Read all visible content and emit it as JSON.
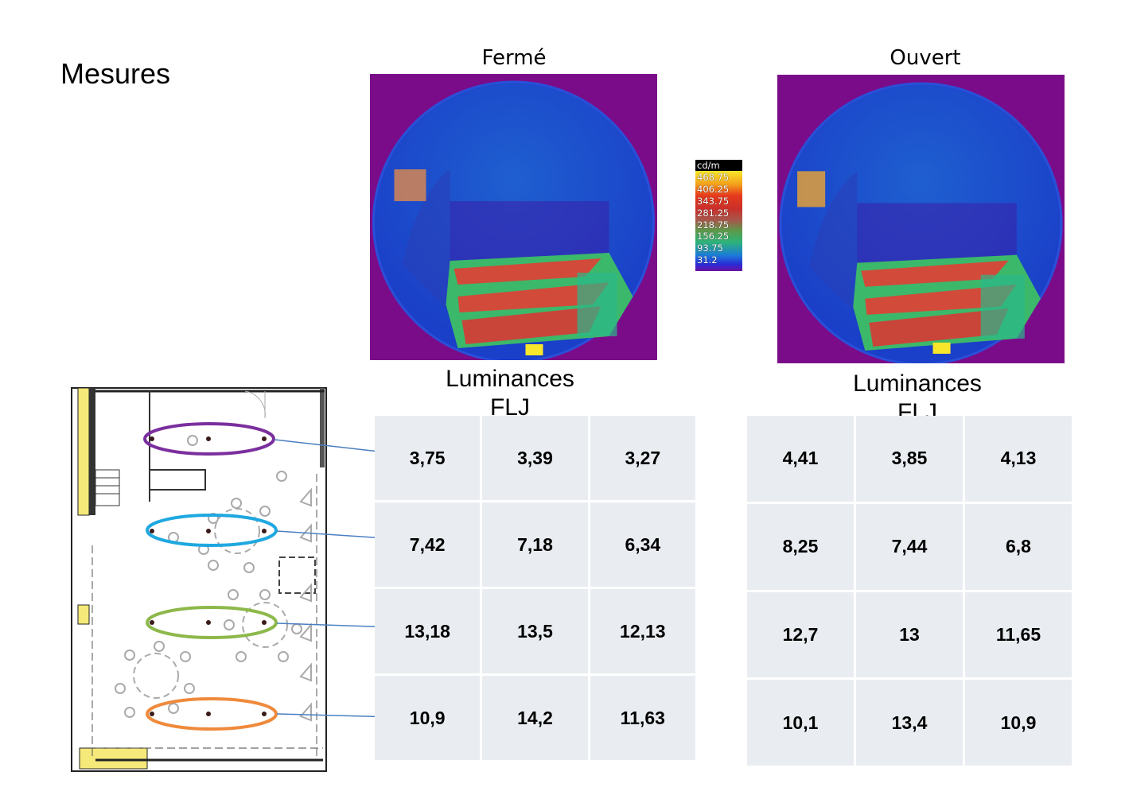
{
  "page": {
    "title": "Mesures"
  },
  "images": {
    "closed": {
      "caption": "Fermé"
    },
    "open": {
      "caption": "Ouvert"
    }
  },
  "legend": {
    "unit": "cd/m",
    "values": [
      "468.75",
      "406.25",
      "343.75",
      "281.25",
      "218.75",
      "156.25",
      "93.75",
      "31.2"
    ]
  },
  "tables": {
    "closed": {
      "title_line1": "Luminances",
      "title_line2": "FLJ",
      "rows": [
        [
          "3,75",
          "3,39",
          "3,27"
        ],
        [
          "7,42",
          "7,18",
          "6,34"
        ],
        [
          "13,18",
          "13,5",
          "12,13"
        ],
        [
          "10,9",
          "14,2",
          "11,63"
        ]
      ]
    },
    "open": {
      "title_line1": "Luminances",
      "title_line2": "FLJ",
      "rows": [
        [
          "4,41",
          "3,85",
          "4,13"
        ],
        [
          "8,25",
          "7,44",
          "6,8"
        ],
        [
          "12,7",
          "13",
          "11,65"
        ],
        [
          "10,1",
          "13,4",
          "10,9"
        ]
      ]
    }
  },
  "floorplan": {
    "row_colors": [
      "#7b2f9e",
      "#1fa8e0",
      "#8db84a",
      "#ef8a3c"
    ],
    "arrow_color": "#4a7fc1"
  }
}
